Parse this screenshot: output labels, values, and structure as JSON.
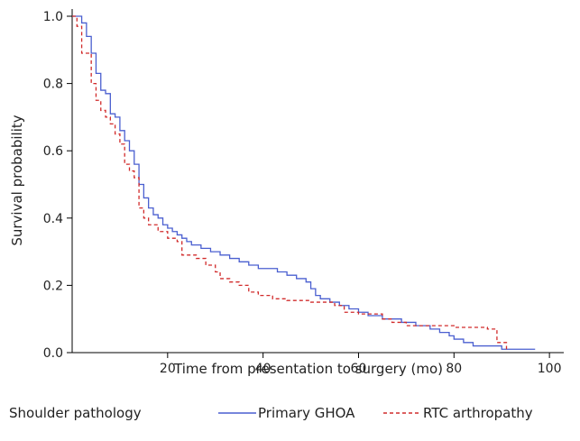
{
  "chart_data": {
    "type": "line",
    "title": "",
    "xlabel": "Time from presentation to surgery (mo)",
    "ylabel": "Survival probability",
    "xlim": [
      0,
      103
    ],
    "ylim": [
      0,
      1.0
    ],
    "x_ticks": [
      20,
      40,
      60,
      80,
      100
    ],
    "y_ticks": [
      0.0,
      0.2,
      0.4,
      0.6,
      0.8,
      1.0
    ],
    "x_tick_labels": [
      "20",
      "40",
      "60",
      "80",
      "100"
    ],
    "y_tick_labels": [
      "0.0",
      "0.2",
      "0.4",
      "0.6",
      "0.8",
      "1.0"
    ],
    "grid": false,
    "legend": {
      "placement": "bottom",
      "title": "Shoulder pathology"
    },
    "series": [
      {
        "name": "Primary GHOA",
        "color": "#4a5fd0",
        "style": "solid",
        "step": true,
        "points": [
          [
            0,
            1.0
          ],
          [
            2,
            0.98
          ],
          [
            3,
            0.94
          ],
          [
            4,
            0.89
          ],
          [
            5,
            0.83
          ],
          [
            6,
            0.78
          ],
          [
            7,
            0.77
          ],
          [
            8,
            0.71
          ],
          [
            9,
            0.7
          ],
          [
            10,
            0.66
          ],
          [
            11,
            0.63
          ],
          [
            12,
            0.6
          ],
          [
            13,
            0.56
          ],
          [
            14,
            0.5
          ],
          [
            15,
            0.46
          ],
          [
            16,
            0.43
          ],
          [
            17,
            0.41
          ],
          [
            18,
            0.4
          ],
          [
            19,
            0.38
          ],
          [
            20,
            0.37
          ],
          [
            21,
            0.36
          ],
          [
            22,
            0.35
          ],
          [
            23,
            0.34
          ],
          [
            24,
            0.33
          ],
          [
            25,
            0.32
          ],
          [
            27,
            0.31
          ],
          [
            29,
            0.3
          ],
          [
            31,
            0.29
          ],
          [
            33,
            0.28
          ],
          [
            35,
            0.27
          ],
          [
            37,
            0.26
          ],
          [
            39,
            0.25
          ],
          [
            41,
            0.25
          ],
          [
            43,
            0.24
          ],
          [
            45,
            0.23
          ],
          [
            47,
            0.22
          ],
          [
            49,
            0.21
          ],
          [
            50,
            0.19
          ],
          [
            51,
            0.17
          ],
          [
            52,
            0.16
          ],
          [
            54,
            0.15
          ],
          [
            56,
            0.14
          ],
          [
            58,
            0.13
          ],
          [
            60,
            0.12
          ],
          [
            62,
            0.11
          ],
          [
            65,
            0.1
          ],
          [
            69,
            0.09
          ],
          [
            72,
            0.08
          ],
          [
            75,
            0.07
          ],
          [
            77,
            0.06
          ],
          [
            79,
            0.05
          ],
          [
            80,
            0.04
          ],
          [
            82,
            0.03
          ],
          [
            84,
            0.02
          ],
          [
            90,
            0.01
          ],
          [
            97,
            0.01
          ]
        ]
      },
      {
        "name": "RTC arthropathy",
        "color": "#d12b2b",
        "style": "dashed",
        "step": true,
        "points": [
          [
            0,
            1.0
          ],
          [
            1,
            0.97
          ],
          [
            2,
            0.89
          ],
          [
            4,
            0.8
          ],
          [
            5,
            0.75
          ],
          [
            6,
            0.72
          ],
          [
            7,
            0.7
          ],
          [
            8,
            0.68
          ],
          [
            9,
            0.65
          ],
          [
            10,
            0.62
          ],
          [
            11,
            0.56
          ],
          [
            12,
            0.54
          ],
          [
            13,
            0.52
          ],
          [
            14,
            0.43
          ],
          [
            15,
            0.4
          ],
          [
            16,
            0.38
          ],
          [
            18,
            0.36
          ],
          [
            20,
            0.34
          ],
          [
            22,
            0.33
          ],
          [
            23,
            0.29
          ],
          [
            26,
            0.28
          ],
          [
            28,
            0.26
          ],
          [
            30,
            0.24
          ],
          [
            31,
            0.22
          ],
          [
            33,
            0.21
          ],
          [
            35,
            0.2
          ],
          [
            37,
            0.18
          ],
          [
            39,
            0.17
          ],
          [
            42,
            0.16
          ],
          [
            45,
            0.155
          ],
          [
            50,
            0.15
          ],
          [
            55,
            0.14
          ],
          [
            57,
            0.12
          ],
          [
            60,
            0.115
          ],
          [
            65,
            0.1
          ],
          [
            67,
            0.09
          ],
          [
            70,
            0.08
          ],
          [
            80,
            0.075
          ],
          [
            87,
            0.07
          ],
          [
            89,
            0.03
          ],
          [
            91,
            0.01
          ]
        ]
      }
    ]
  }
}
